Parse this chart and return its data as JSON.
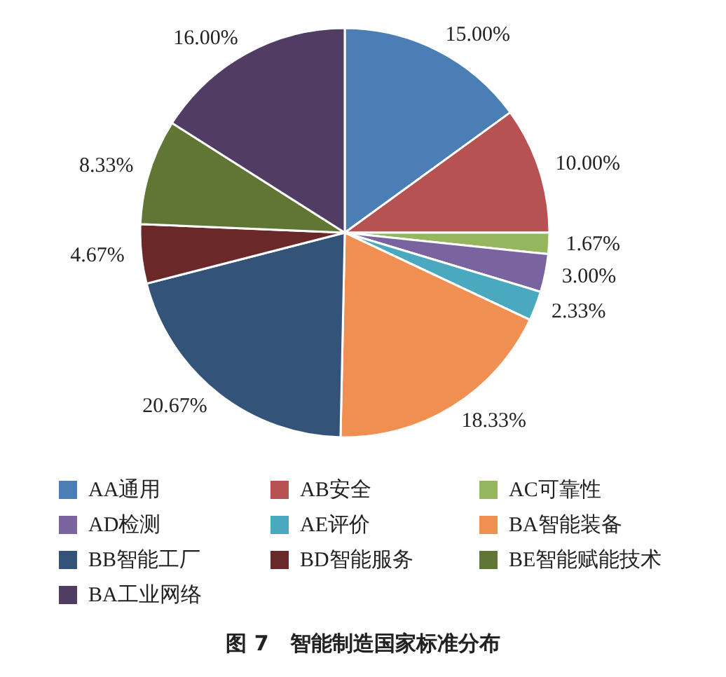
{
  "chart_data": {
    "type": "pie",
    "title": "图 7　智能制造国家标准分布",
    "categories": [
      "AA通用",
      "AB安全",
      "AC可靠性",
      "AD检测",
      "AE评价",
      "BA智能装备",
      "BB智能工厂",
      "BD智能服务",
      "BE智能赋能技术",
      "BA工业网络"
    ],
    "values": [
      15.0,
      10.0,
      1.67,
      3.0,
      2.33,
      18.33,
      20.67,
      4.67,
      8.33,
      16.0
    ],
    "colors": [
      "#4a7eb4",
      "#b65252",
      "#96b55f",
      "#7964a0",
      "#4aa8bf",
      "#f08f52",
      "#345378",
      "#6b2828",
      "#617534",
      "#513c63"
    ],
    "value_labels": [
      "15.00%",
      "10.00%",
      "1.67%",
      "3.00%",
      "2.33%",
      "18.33%",
      "20.67%",
      "4.67%",
      "8.33%",
      "16.00%"
    ],
    "legend": "bottom"
  }
}
